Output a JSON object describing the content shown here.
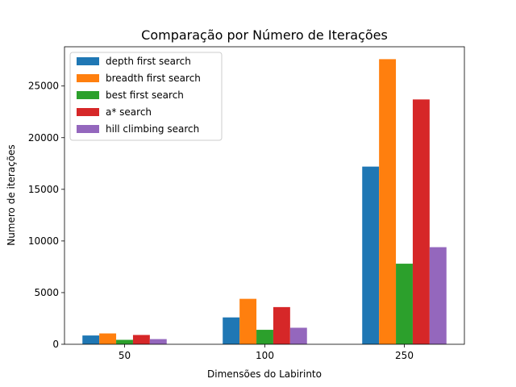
{
  "chart_data": {
    "type": "bar",
    "title": "Comparação por Número de Iterações",
    "xlabel": "Dimensões do Labirinto",
    "ylabel": "Numero de iterações",
    "categories": [
      "50",
      "100",
      "250"
    ],
    "ylim": [
      0,
      28800
    ],
    "yticks": [
      0,
      5000,
      10000,
      15000,
      20000,
      25000
    ],
    "ytick_labels": [
      "0",
      "5000",
      "10000",
      "15000",
      "20000",
      "25000"
    ],
    "legend_position": "top-left",
    "grid": false,
    "series": [
      {
        "name": "depth first search",
        "color": "#1f77b4",
        "values": [
          850,
          2600,
          17200
        ]
      },
      {
        "name": "breadth first search",
        "color": "#ff7f0e",
        "values": [
          1050,
          4400,
          27600
        ]
      },
      {
        "name": "best first search",
        "color": "#2ca02c",
        "values": [
          430,
          1400,
          7800
        ]
      },
      {
        "name": "a* search",
        "color": "#d62728",
        "values": [
          900,
          3600,
          23700
        ]
      },
      {
        "name": "hill climbing search",
        "color": "#9467bd",
        "values": [
          500,
          1600,
          9400
        ]
      }
    ]
  }
}
